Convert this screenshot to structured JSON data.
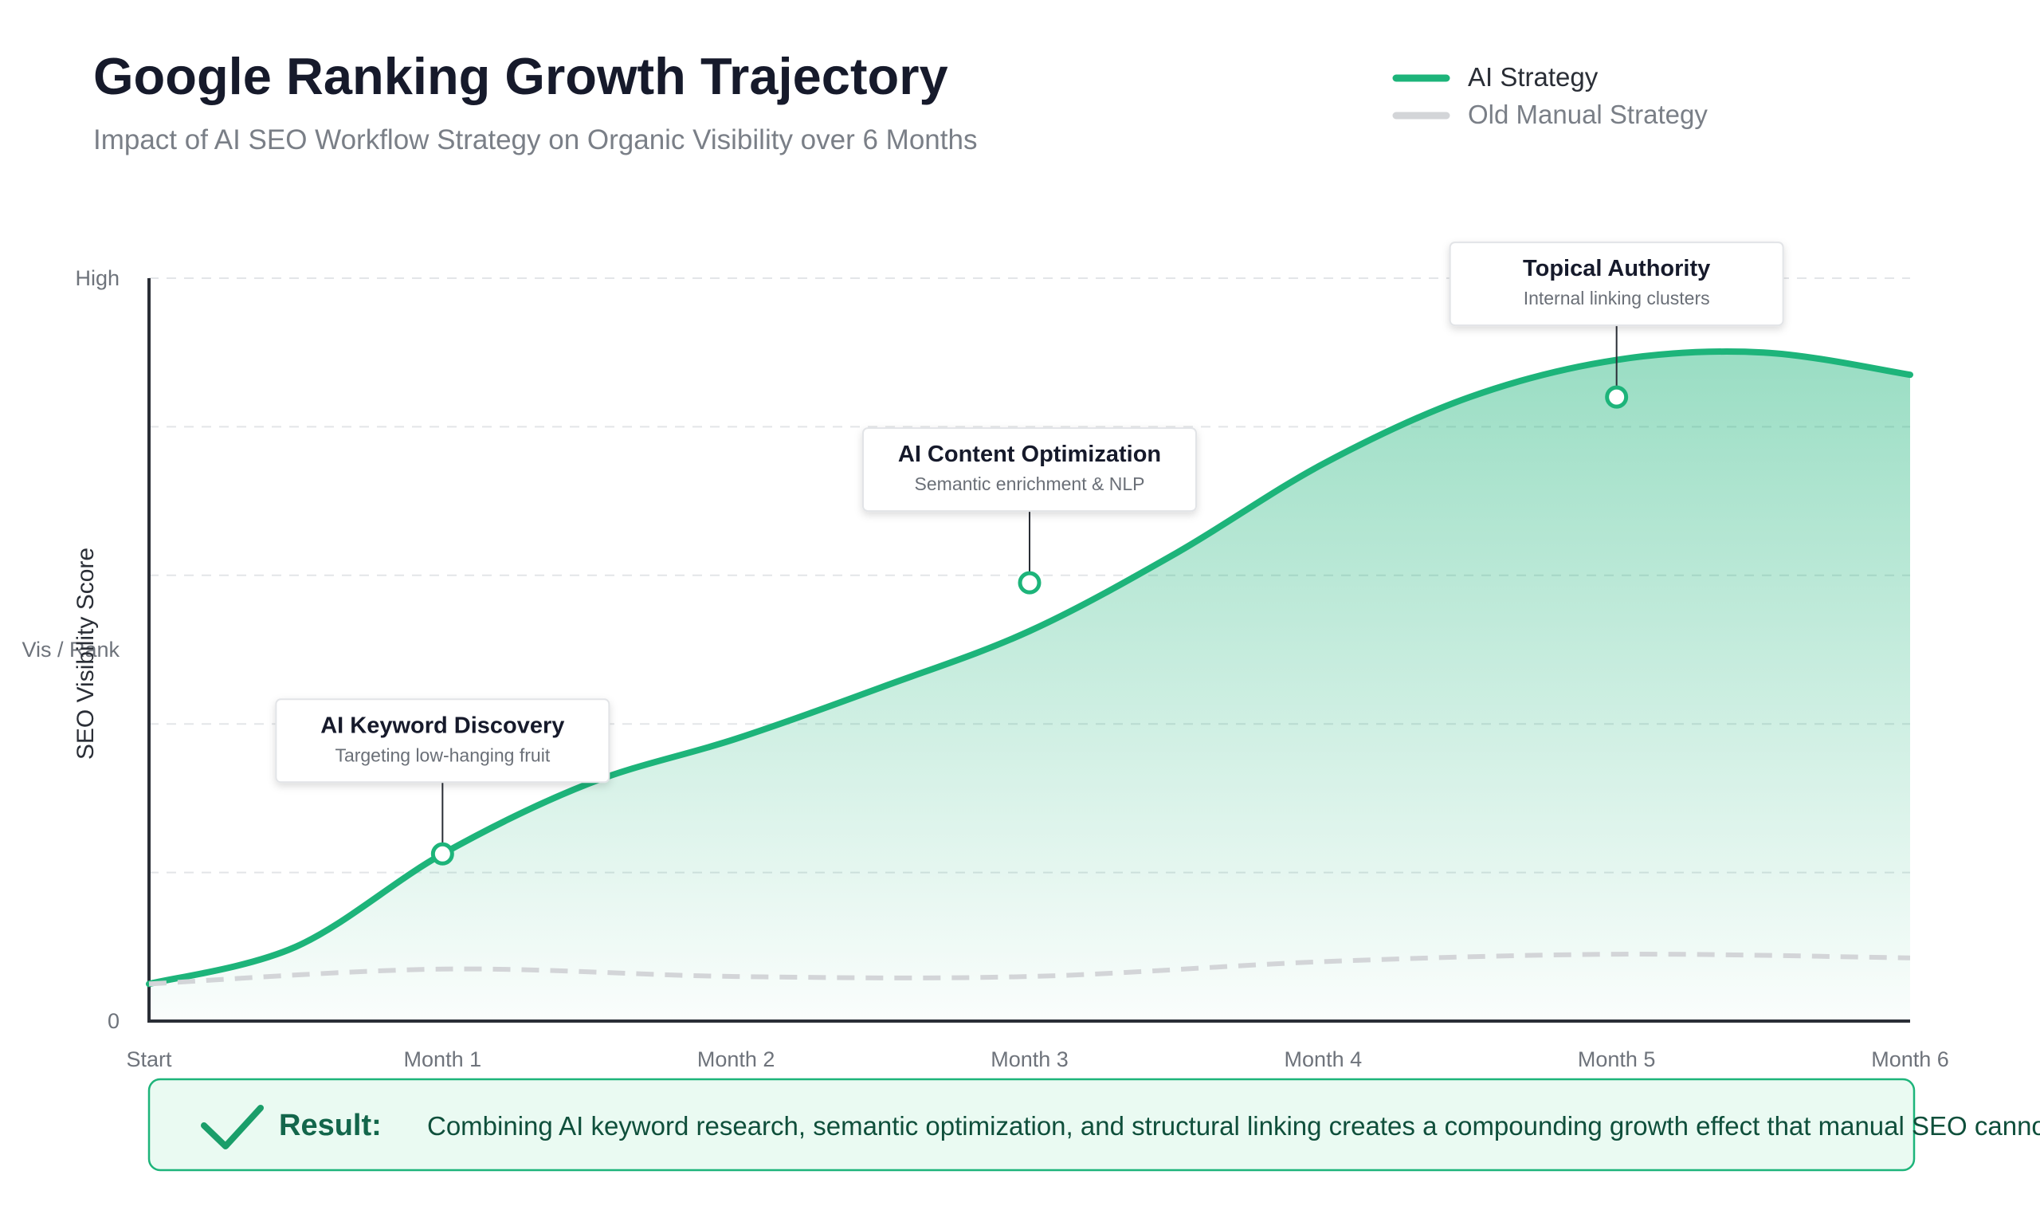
{
  "colors": {
    "ai_strategy": "#1db47a",
    "manual_strategy": "#d3d5d8",
    "axis": "#2a2e36",
    "grid": "#e3e5e8",
    "result_bg": "#eafaf2",
    "result_border": "#1db47a"
  },
  "chart_data": {
    "type": "area",
    "title": "Google Ranking Growth Trajectory",
    "subtitle": "Impact of AI SEO Workflow Strategy on Organic Visibility over 6 Months",
    "ylabel": "SEO Visibility Score",
    "xlabel": "",
    "categories": [
      "Start",
      "Month 1",
      "Month 2",
      "Month 3",
      "Month 4",
      "Month 5",
      "Month 6"
    ],
    "x": [
      0,
      1,
      2,
      3,
      4,
      5,
      6
    ],
    "ylim": [
      0,
      100
    ],
    "yticks": [
      {
        "value": 0,
        "label": "0"
      },
      {
        "value": 50,
        "label": "Vis / Rank"
      },
      {
        "value": 100,
        "label": "High"
      }
    ],
    "grid": true,
    "legend_position": "top-right",
    "series": [
      {
        "name": "AI Strategy",
        "style": "solid",
        "filled": true,
        "x": [
          0,
          0.5,
          1,
          1.5,
          2,
          2.5,
          3,
          3.5,
          4,
          4.5,
          5,
          5.5,
          6
        ],
        "values": [
          5,
          10,
          22.5,
          32,
          38,
          45,
          52.5,
          63,
          75,
          84,
          89,
          90,
          87
        ]
      },
      {
        "name": "Old Manual Strategy",
        "style": "dashed",
        "filled": false,
        "x": [
          0,
          1,
          2,
          3,
          4,
          5,
          6
        ],
        "values": [
          5,
          7,
          6,
          6,
          8,
          9,
          8.5
        ]
      }
    ],
    "annotations": [
      {
        "x": 1,
        "y": 22.5,
        "title": "AI Keyword Discovery",
        "subtitle": "Targeting low-hanging fruit"
      },
      {
        "x": 3,
        "y": 59,
        "title": "AI Content Optimization",
        "subtitle": "Semantic enrichment & NLP"
      },
      {
        "x": 5,
        "y": 84,
        "title": "Topical Authority",
        "subtitle": "Internal linking clusters"
      }
    ]
  },
  "result": {
    "label": "Result:",
    "text": "Combining AI keyword research, semantic optimization, and structural linking creates a compounding growth effect that manual SEO cannot",
    "icon": "check-icon"
  }
}
